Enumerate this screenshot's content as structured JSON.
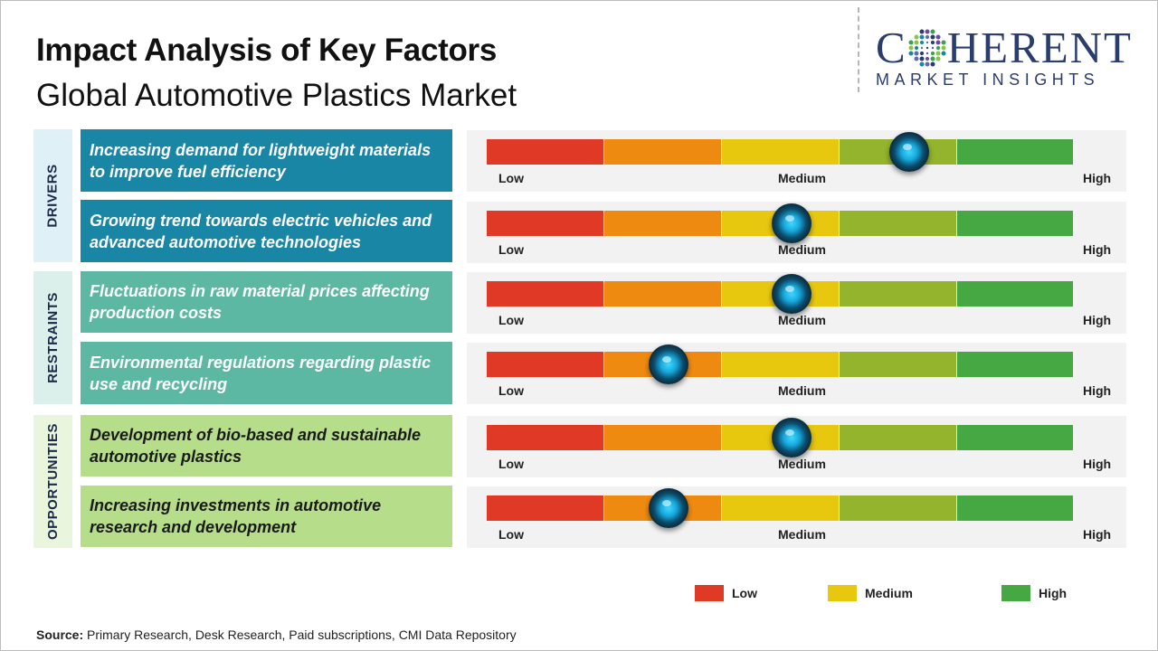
{
  "header": {
    "title": "Impact Analysis of Key Factors",
    "subtitle": "Global Automotive Plastics Market"
  },
  "logo": {
    "main_left": "C",
    "main_right": "HERENT",
    "sub": "MARKET INSIGHTS"
  },
  "colors": {
    "low": "#e03a26",
    "low_mid": "#ef8a10",
    "medium": "#e8c80e",
    "mid_high": "#93b42c",
    "high": "#46a843",
    "drivers_bg": "#1a86a6",
    "drivers_side": "#dff1f6",
    "restraints_bg": "#5cb8a3",
    "restraints_side": "#dbf0ea",
    "opportunities_bg": "#b5dd8a",
    "opportunities_side": "#e9f5dc"
  },
  "chart_data": {
    "type": "gauge",
    "scale_labels": [
      "Low",
      "Medium",
      "High"
    ],
    "scale_segments": 5,
    "groups": [
      {
        "name": "DRIVERS",
        "factors": [
          {
            "label": "Increasing demand for lightweight materials to improve fuel efficiency",
            "level": 0.72
          },
          {
            "label": "Growing trend towards electric vehicles and advanced automotive technologies",
            "level": 0.52
          }
        ]
      },
      {
        "name": "RESTRAINTS",
        "factors": [
          {
            "label": "Fluctuations in raw material prices affecting production costs",
            "level": 0.52
          },
          {
            "label": "Environmental regulations regarding plastic use and recycling",
            "level": 0.31
          }
        ]
      },
      {
        "name": "OPPORTUNITIES",
        "factors": [
          {
            "label": "Development of bio-based and sustainable automotive plastics",
            "level": 0.52
          },
          {
            "label": "Increasing investments in automotive research and development",
            "level": 0.31
          }
        ]
      }
    ],
    "legend": [
      "Low",
      "Medium",
      "High"
    ]
  },
  "source": {
    "label": "Source:",
    "text": "Primary Research, Desk Research, Paid subscriptions, CMI Data Repository"
  }
}
